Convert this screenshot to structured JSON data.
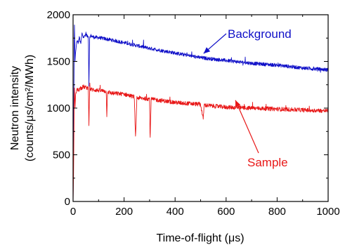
{
  "chart_data": {
    "type": "line",
    "xlabel": "Time-of-flight (μs)",
    "ylabel": "Neutron intensity",
    "ylabel_line2": "(counts/μs/cm²/MWh)",
    "xlim": [
      0,
      1000
    ],
    "ylim": [
      0,
      2000
    ],
    "xticks": [
      0,
      200,
      400,
      600,
      800,
      1000
    ],
    "yticks": [
      0,
      500,
      1000,
      1500,
      2000
    ],
    "grid": false,
    "series": [
      {
        "name": "Background",
        "color": "#1010c8",
        "x": [
          0,
          2,
          5,
          8,
          10,
          15,
          20,
          25,
          30,
          35,
          40,
          50,
          60,
          62,
          65,
          70,
          80,
          100,
          150,
          200,
          300,
          400,
          500,
          600,
          700,
          800,
          900,
          1000
        ],
        "values": [
          0,
          600,
          1950,
          1500,
          1600,
          1720,
          1700,
          1760,
          1680,
          1800,
          1760,
          1780,
          1770,
          1220,
          1760,
          1775,
          1760,
          1755,
          1730,
          1700,
          1640,
          1590,
          1540,
          1510,
          1480,
          1460,
          1430,
          1410
        ]
      },
      {
        "name": "Sample",
        "color": "#e81818",
        "x": [
          0,
          2,
          5,
          8,
          10,
          15,
          20,
          30,
          40,
          50,
          60,
          62,
          65,
          70,
          100,
          130,
          132,
          135,
          150,
          200,
          240,
          245,
          250,
          300,
          302,
          306,
          350,
          400,
          450,
          500,
          510,
          514,
          520,
          600,
          700,
          800,
          900,
          1000
        ],
        "values": [
          0,
          300,
          1250,
          1000,
          1150,
          1200,
          1190,
          1210,
          1230,
          1220,
          1215,
          820,
          1210,
          1200,
          1190,
          1180,
          900,
          1175,
          1160,
          1150,
          1120,
          660,
          1110,
          1100,
          640,
          1095,
          1080,
          1060,
          1050,
          1040,
          880,
          1035,
          1030,
          1010,
          1000,
          990,
          980,
          970
        ]
      }
    ],
    "annotations": [
      {
        "text": "Background",
        "color": "#1010c8",
        "arrow_to": [
          520,
          1600
        ]
      },
      {
        "text": "Sample",
        "color": "#e81818",
        "arrow_to": [
          620,
          1100
        ]
      }
    ]
  }
}
